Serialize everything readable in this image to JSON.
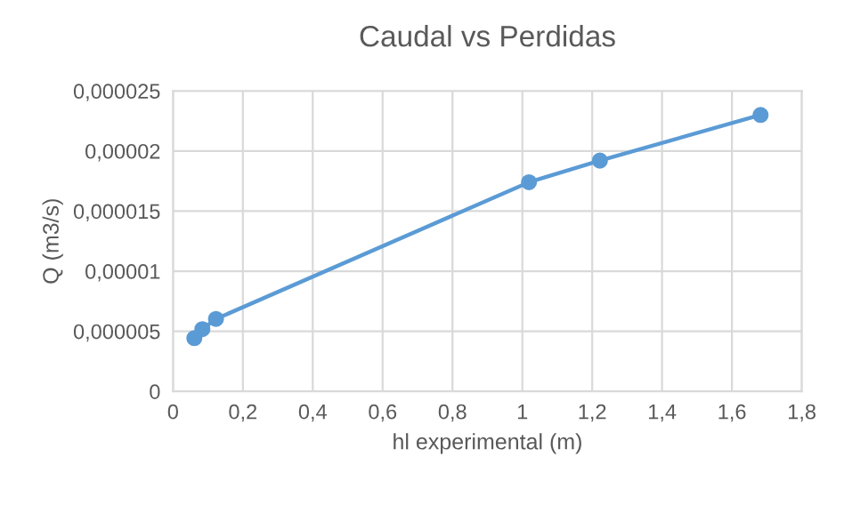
{
  "chart_data": {
    "type": "line",
    "title": "Caudal vs Perdidas",
    "xlabel": "hl experimental (m)",
    "ylabel": "Q (m3/s)",
    "series": [
      {
        "color": "#5b9bd5",
        "x": [
          0.061,
          0.084,
          0.123,
          1.019,
          1.222,
          1.682
        ],
        "values": [
          4.43e-06,
          5.18e-06,
          6.03e-06,
          1.74e-05,
          1.92e-05,
          2.3e-05
        ]
      }
    ],
    "marker": "circle",
    "grid": true,
    "legend": false,
    "xlim": [
      0,
      1.8
    ],
    "xticks": [
      0,
      {
        "value": 0.2,
        "label": "0,2"
      },
      {
        "value": 0.4,
        "label": "0,4"
      },
      {
        "value": 0.6,
        "label": "0,6"
      },
      {
        "value": 0.8,
        "label": "0,8"
      },
      1,
      {
        "value": 1.2,
        "label": "1,2"
      },
      {
        "value": 1.4,
        "label": "1,4"
      },
      {
        "value": 1.6,
        "label": "1,6"
      },
      {
        "value": 1.8,
        "label": "1,8"
      }
    ],
    "ylim": [
      0,
      2.5e-05
    ],
    "yticks": [
      0,
      {
        "value": 5e-06,
        "label": "0,000005"
      },
      {
        "value": 1e-05,
        "label": "0,00001"
      },
      {
        "value": 1.5e-05,
        "label": "0,000015"
      },
      {
        "value": 2e-05,
        "label": "0,00002"
      },
      {
        "value": 2.5e-05,
        "label": "0,000025"
      }
    ]
  }
}
